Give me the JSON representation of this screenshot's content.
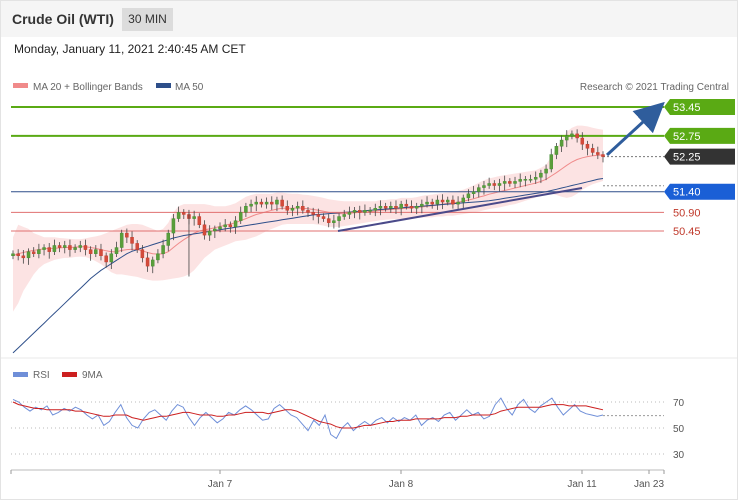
{
  "header": {
    "title": "Crude Oil (WTI)",
    "interval": "30 MIN",
    "datetime": "Monday, January 11, 2021 2:40:45 AM CET",
    "copyright": "Research © 2021 Trading Central"
  },
  "colors": {
    "green": "#5aaa14",
    "blue_label": "#1a5fd6",
    "red_line": "#e07070",
    "red_text": "#c0392b",
    "current": "#333333",
    "ma50": "#2e4f8a",
    "ma20": "#f08a8a",
    "band": "#fcdede",
    "rsi": "#6f8fd8",
    "rsi_ma": "#cc1f1f",
    "candle_up": "#3d8b30",
    "candle_down": "#c0392b",
    "trend": "#4a4a8a",
    "arrow": "#2f5d9c"
  },
  "chart_data": [
    {
      "type": "line",
      "name": "price",
      "legend": [
        "MA 20 + Bollinger Bands",
        "MA 50"
      ],
      "legend_placement": "top-left",
      "xticks": [
        "Jan 7",
        "Jan 8",
        "Jan 11",
        "Jan 23"
      ],
      "ylim": [
        45.0,
        54.2
      ],
      "levels": [
        {
          "value": 53.45,
          "label": "53.45",
          "kind": "resistance"
        },
        {
          "value": 52.75,
          "label": "52.75",
          "kind": "resistance"
        },
        {
          "value": 52.25,
          "label": "52.25",
          "kind": "current"
        },
        {
          "value": 51.4,
          "label": "51.40",
          "kind": "pivot"
        },
        {
          "value": 50.9,
          "label": "50.90",
          "kind": "support"
        },
        {
          "value": 50.45,
          "label": "50.45",
          "kind": "support"
        }
      ],
      "close": [
        49.9,
        49.85,
        49.8,
        49.95,
        49.9,
        50.0,
        50.05,
        49.95,
        50.1,
        50.05,
        50.1,
        50.0,
        50.05,
        50.1,
        50.0,
        49.9,
        50.0,
        49.85,
        49.7,
        49.9,
        50.05,
        50.4,
        50.3,
        50.15,
        50.0,
        49.8,
        49.6,
        49.75,
        49.9,
        50.1,
        50.4,
        50.75,
        50.9,
        50.85,
        50.75,
        50.8,
        50.6,
        50.35,
        50.45,
        50.5,
        50.55,
        50.6,
        50.55,
        50.7,
        50.9,
        51.05,
        51.1,
        51.15,
        51.1,
        51.15,
        51.1,
        51.2,
        51.05,
        50.95,
        51.0,
        51.05,
        50.95,
        50.9,
        50.85,
        50.8,
        50.75,
        50.65,
        50.7,
        50.8,
        50.85,
        50.9,
        50.95,
        50.9,
        50.95,
        50.95,
        51.0,
        51.05,
        51.0,
        51.05,
        51.0,
        51.1,
        51.05,
        51.0,
        51.05,
        51.1,
        51.15,
        51.1,
        51.2,
        51.15,
        51.2,
        51.1,
        51.15,
        51.25,
        51.35,
        51.4,
        51.5,
        51.55,
        51.6,
        51.55,
        51.6,
        51.65,
        51.6,
        51.65,
        51.7,
        51.7,
        51.7,
        51.75,
        51.85,
        51.95,
        52.3,
        52.5,
        52.65,
        52.75,
        52.8,
        52.7,
        52.55,
        52.45,
        52.35,
        52.3,
        52.25
      ],
      "ma20": [
        49.85,
        49.9,
        49.93,
        49.96,
        49.98,
        50.0,
        50.02,
        50.03,
        50.03,
        50.04,
        50.05,
        50.05,
        50.06,
        50.07,
        50.07,
        50.05,
        50.03,
        50.0,
        49.97,
        49.95,
        49.95,
        49.98,
        50.0,
        50.01,
        50.0,
        49.97,
        49.93,
        49.9,
        49.89,
        49.9,
        49.95,
        50.05,
        50.15,
        50.24,
        50.32,
        50.4,
        50.45,
        50.48,
        50.5,
        50.53,
        50.56,
        50.59,
        50.62,
        50.65,
        50.7,
        50.75,
        50.8,
        50.85,
        50.88,
        50.92,
        50.95,
        50.98,
        51.0,
        51.0,
        51.0,
        51.01,
        51.0,
        50.99,
        50.97,
        50.95,
        50.93,
        50.9,
        50.88,
        50.87,
        50.87,
        50.88,
        50.89,
        50.9,
        50.91,
        50.92,
        50.93,
        50.95,
        50.96,
        50.97,
        50.98,
        50.99,
        51.0,
        51.01,
        51.02,
        51.03,
        51.05,
        51.06,
        51.08,
        51.1,
        51.12,
        51.13,
        51.15,
        51.17,
        51.2,
        51.23,
        51.27,
        51.3,
        51.34,
        51.37,
        51.4,
        51.43,
        51.46,
        51.49,
        51.52,
        51.55,
        51.58,
        51.61,
        51.65,
        51.7,
        51.78,
        51.86,
        51.95,
        52.04,
        52.12,
        52.18,
        52.22,
        52.25,
        52.27,
        52.28,
        52.29
      ],
      "bb_upper": [
        50.3,
        50.6,
        50.55,
        50.5,
        50.4,
        50.35,
        50.3,
        50.3,
        50.3,
        50.28,
        50.27,
        50.26,
        50.25,
        50.25,
        50.27,
        50.3,
        50.32,
        50.35,
        50.4,
        50.45,
        50.5,
        50.55,
        50.6,
        50.62,
        50.62,
        50.6,
        50.55,
        50.5,
        50.45,
        50.5,
        50.65,
        50.9,
        51.05,
        51.1,
        51.1,
        51.1,
        51.1,
        51.1,
        51.08,
        51.05,
        51.05,
        51.05,
        51.08,
        51.12,
        51.2,
        51.28,
        51.32,
        51.35,
        51.35,
        51.35,
        51.35,
        51.38,
        51.38,
        51.36,
        51.35,
        51.35,
        51.33,
        51.32,
        51.3,
        51.28,
        51.25,
        51.22,
        51.2,
        51.18,
        51.17,
        51.17,
        51.17,
        51.17,
        51.17,
        51.17,
        51.17,
        51.2,
        51.2,
        51.22,
        51.22,
        51.25,
        51.25,
        51.25,
        51.27,
        51.3,
        51.32,
        51.33,
        51.35,
        51.37,
        51.38,
        51.4,
        51.42,
        51.45,
        51.5,
        51.55,
        51.62,
        51.68,
        51.72,
        51.75,
        51.78,
        51.8,
        51.82,
        51.84,
        51.86,
        51.88,
        51.9,
        51.92,
        51.98,
        52.05,
        52.25,
        52.45,
        52.65,
        52.85,
        52.95,
        53.0,
        53.0,
        52.98,
        52.95,
        52.92,
        52.9
      ],
      "bb_lower": [
        48.5,
        48.7,
        49.0,
        49.2,
        49.4,
        49.55,
        49.65,
        49.7,
        49.75,
        49.78,
        49.8,
        49.8,
        49.82,
        49.83,
        49.82,
        49.78,
        49.72,
        49.65,
        49.55,
        49.45,
        49.4,
        49.4,
        49.38,
        49.36,
        49.34,
        49.3,
        49.27,
        49.25,
        49.25,
        49.26,
        49.28,
        49.3,
        49.32,
        49.35,
        49.4,
        49.5,
        49.65,
        49.8,
        49.9,
        50.0,
        50.05,
        50.1,
        50.15,
        50.2,
        50.22,
        50.24,
        50.28,
        50.32,
        50.38,
        50.45,
        50.5,
        50.55,
        50.6,
        50.62,
        50.62,
        50.62,
        50.62,
        50.62,
        50.62,
        50.6,
        50.58,
        50.55,
        50.55,
        50.55,
        50.57,
        50.59,
        50.61,
        50.63,
        50.65,
        50.67,
        50.69,
        50.71,
        50.72,
        50.73,
        50.74,
        50.74,
        50.75,
        50.76,
        50.77,
        50.77,
        50.78,
        50.78,
        50.8,
        50.8,
        50.82,
        50.82,
        50.84,
        50.86,
        50.88,
        50.9,
        50.92,
        50.95,
        50.98,
        51.0,
        51.02,
        51.05,
        51.08,
        51.1,
        51.14,
        51.18,
        51.22,
        51.26,
        51.3,
        51.34,
        51.35,
        51.32,
        51.28,
        51.25,
        51.28,
        51.35,
        51.45,
        51.52,
        51.58,
        51.62,
        51.66
      ],
      "ma50": [
        47.5,
        47.62,
        47.74,
        47.86,
        47.98,
        48.1,
        48.22,
        48.34,
        48.46,
        48.58,
        48.7,
        48.82,
        48.94,
        49.06,
        49.18,
        49.3,
        49.4,
        49.5,
        49.58,
        49.66,
        49.74,
        49.82,
        49.9,
        49.96,
        50.0,
        50.04,
        50.08,
        50.12,
        50.16,
        50.2,
        50.24,
        50.28,
        50.31,
        50.34,
        50.36,
        50.38,
        50.4,
        50.42,
        50.44,
        50.46,
        50.48,
        50.5,
        50.52,
        50.54,
        50.56,
        50.58,
        50.6,
        50.62,
        50.64,
        50.66,
        50.68,
        50.7,
        50.72,
        50.74,
        50.76,
        50.78,
        50.8,
        50.82,
        50.84,
        50.85,
        50.86,
        50.87,
        50.88,
        50.89,
        50.9,
        50.91,
        50.92,
        50.93,
        50.94,
        50.95,
        50.96,
        50.97,
        50.98,
        50.99,
        51.0,
        51.01,
        51.02,
        51.03,
        51.04,
        51.05,
        51.06,
        51.07,
        51.08,
        51.09,
        51.1,
        51.11,
        51.12,
        51.13,
        51.14,
        51.15,
        51.16,
        51.17,
        51.18,
        51.2,
        51.22,
        51.24,
        51.26,
        51.28,
        51.3,
        51.32,
        51.34,
        51.36,
        51.38,
        51.4,
        51.43,
        51.46,
        51.49,
        51.52,
        51.55,
        51.58,
        51.61,
        51.64,
        51.67,
        51.7,
        51.72
      ]
    },
    {
      "type": "line",
      "name": "rsi_panel",
      "legend": [
        "RSI",
        "9MA"
      ],
      "legend_placement": "top-left",
      "yticks": [
        70,
        50,
        30
      ],
      "ylim": [
        27,
        80
      ],
      "rsi": [
        72,
        70,
        66,
        63,
        66,
        64,
        67,
        60,
        62,
        65,
        63,
        66,
        64,
        60,
        57,
        60,
        52,
        55,
        62,
        68,
        58,
        52,
        50,
        57,
        62,
        64,
        60,
        56,
        63,
        68,
        66,
        58,
        52,
        58,
        62,
        58,
        54,
        57,
        62,
        60,
        64,
        67,
        64,
        60,
        56,
        57,
        65,
        68,
        64,
        60,
        58,
        53,
        48,
        56,
        52,
        60,
        45,
        42,
        50,
        54,
        48,
        52,
        55,
        52,
        56,
        58,
        54,
        58,
        55,
        58,
        56,
        60,
        52,
        56,
        58,
        55,
        60,
        62,
        56,
        60,
        64,
        60,
        62,
        57,
        59,
        68,
        73,
        65,
        60,
        68,
        72,
        65,
        62,
        67,
        70,
        73,
        66,
        60,
        64,
        68,
        63,
        61,
        60,
        59,
        60
      ],
      "ma9": [
        70,
        68,
        67,
        66,
        65,
        65,
        64,
        64,
        64,
        64,
        64,
        63,
        63,
        62,
        61,
        60,
        59,
        59,
        60,
        60,
        60,
        58,
        57,
        56,
        57,
        58,
        59,
        59,
        60,
        61,
        62,
        62,
        61,
        60,
        60,
        60,
        59,
        59,
        60,
        60,
        61,
        62,
        62,
        62,
        62,
        61,
        62,
        63,
        64,
        64,
        63,
        61,
        59,
        57,
        55,
        54,
        53,
        51,
        50,
        50,
        50,
        51,
        52,
        52,
        53,
        54,
        55,
        55,
        56,
        56,
        56,
        57,
        57,
        57,
        57,
        57,
        58,
        58,
        58,
        59,
        59,
        60,
        60,
        60,
        60,
        61,
        63,
        64,
        65,
        66,
        66,
        66,
        66,
        66,
        67,
        68,
        68,
        68,
        67,
        67,
        67,
        67,
        66,
        65,
        64
      ]
    }
  ]
}
